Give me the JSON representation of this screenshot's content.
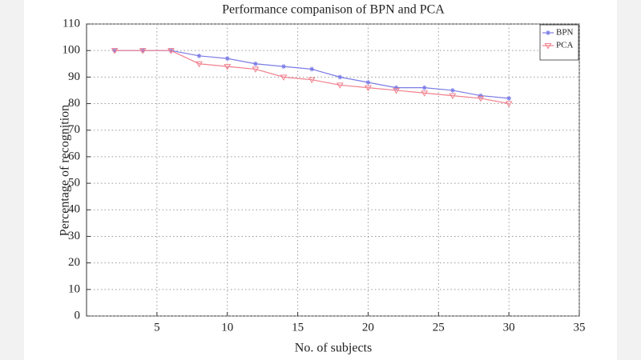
{
  "chart_data": {
    "type": "line",
    "title": "Performance companison of BPN and PCA",
    "x_label": "No. of subjects",
    "y_label": "Percentage of recognition",
    "x": [
      2,
      4,
      6,
      8,
      10,
      12,
      14,
      16,
      18,
      20,
      22,
      24,
      26,
      28,
      30
    ],
    "series": [
      {
        "name": "BPN",
        "color": "#7b7be6",
        "marker": "star",
        "values": [
          100,
          100,
          100,
          98,
          97,
          95,
          94,
          93,
          90,
          88,
          86,
          86,
          85,
          83,
          82
        ]
      },
      {
        "name": "PCA",
        "color": "#f07f8c",
        "marker": "triangle-down",
        "values": [
          100,
          100,
          100,
          95,
          94,
          93,
          90,
          89,
          87,
          86,
          85,
          84,
          83,
          82,
          80
        ]
      }
    ],
    "xlim": [
      0,
      35
    ],
    "xticks": [
      5,
      10,
      15,
      20,
      25,
      30,
      35
    ],
    "ylim": [
      0,
      110
    ],
    "yticks": [
      0,
      10,
      20,
      30,
      40,
      50,
      60,
      70,
      80,
      90,
      100,
      110
    ],
    "grid": true,
    "legend": "upper right"
  }
}
